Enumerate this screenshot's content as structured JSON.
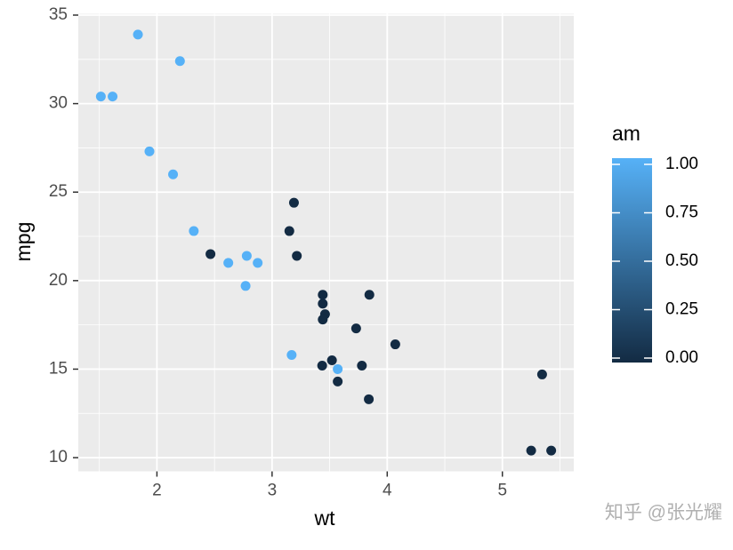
{
  "chart_data": {
    "type": "scatter",
    "x_label": "wt",
    "y_label": "mpg",
    "x": [
      2.62,
      2.875,
      2.32,
      3.215,
      3.44,
      3.46,
      3.57,
      3.19,
      3.15,
      3.44,
      3.44,
      4.07,
      3.73,
      3.78,
      5.25,
      5.424,
      5.345,
      2.2,
      1.615,
      1.835,
      2.465,
      3.52,
      3.435,
      3.84,
      3.845,
      1.935,
      2.14,
      1.513,
      3.17,
      2.77,
      3.57,
      2.78
    ],
    "y": [
      21.0,
      21.0,
      22.8,
      21.4,
      18.7,
      18.1,
      14.3,
      24.4,
      22.8,
      19.2,
      17.8,
      16.4,
      17.3,
      15.2,
      10.4,
      10.4,
      14.7,
      32.4,
      30.4,
      33.9,
      21.5,
      15.5,
      15.2,
      13.3,
      19.2,
      27.3,
      26.0,
      30.4,
      15.8,
      19.7,
      15.0,
      21.4
    ],
    "color_values": [
      1,
      1,
      1,
      0,
      0,
      0,
      0,
      0,
      0,
      0,
      0,
      0,
      0,
      0,
      0,
      0,
      0,
      1,
      1,
      1,
      0,
      0,
      0,
      0,
      0,
      1,
      1,
      1,
      1,
      1,
      1,
      1
    ],
    "color_title": "am",
    "color_low": "#132B43",
    "color_high": "#56B1F7",
    "color_lim": [
      0,
      1
    ],
    "color_ticks": [
      {
        "value": 0,
        "label": "0.00"
      },
      {
        "value": 0.25,
        "label": "0.25"
      },
      {
        "value": 0.5,
        "label": "0.50"
      },
      {
        "value": 0.75,
        "label": "0.75"
      },
      {
        "value": 1,
        "label": "1.00"
      }
    ],
    "xlim": [
      1.317,
      5.62
    ],
    "xticks": [
      2,
      3,
      4,
      5
    ],
    "ylim": [
      9.225,
      35.075
    ],
    "yticks": [
      10,
      15,
      20,
      25,
      30,
      35
    ],
    "grid": true,
    "watermark": "知乎 @张光耀"
  }
}
